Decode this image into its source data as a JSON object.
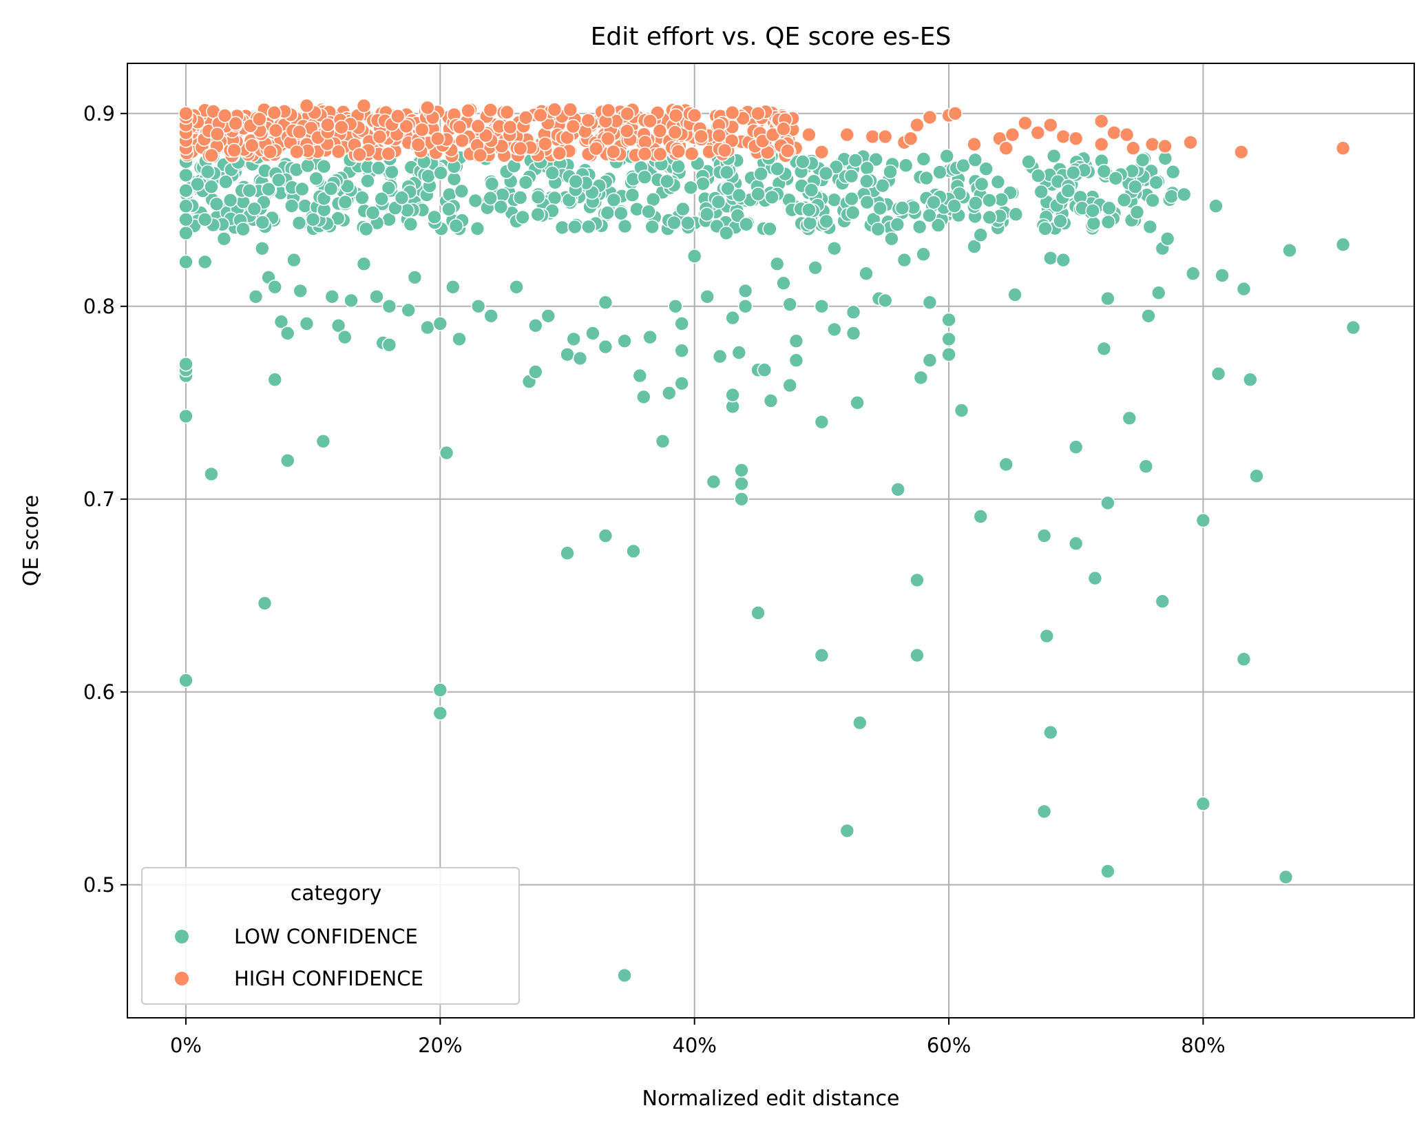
{
  "chart_data": {
    "type": "scatter",
    "title": "Edit effort vs. QE score es-ES",
    "xlabel": "Normalized edit distance",
    "ylabel": "QE score",
    "xlim": [
      -0.046,
      0.966
    ],
    "ylim": [
      0.431,
      0.926
    ],
    "x_ticks": [
      0,
      0.2,
      0.4,
      0.6,
      0.8
    ],
    "x_tick_labels": [
      "0%",
      "20%",
      "40%",
      "60%",
      "80%"
    ],
    "y_ticks": [
      0.5,
      0.6,
      0.7,
      0.8,
      0.9
    ],
    "y_tick_labels": [
      "0.5",
      "0.6",
      "0.7",
      "0.8",
      "0.9"
    ],
    "grid": true,
    "legend": {
      "title": "category",
      "position": "lower-left"
    },
    "colors": {
      "low": "#66c2a5",
      "high": "#fc8d62"
    },
    "series": [
      {
        "name": "LOW CONFIDENCE",
        "color": "#66c2a5",
        "points": [
          [
            0.0,
            0.606
          ],
          [
            0.0,
            0.743
          ],
          [
            0.0,
            0.764
          ],
          [
            0.0,
            0.767
          ],
          [
            0.0,
            0.77
          ],
          [
            0.0,
            0.823
          ],
          [
            0.0,
            0.838
          ],
          [
            0.0,
            0.845
          ],
          [
            0.0,
            0.852
          ],
          [
            0.0,
            0.86
          ],
          [
            0.0,
            0.868
          ],
          [
            0.0,
            0.875
          ],
          [
            0.015,
            0.823
          ],
          [
            0.015,
            0.845
          ],
          [
            0.02,
            0.713
          ],
          [
            0.02,
            0.862
          ],
          [
            0.03,
            0.835
          ],
          [
            0.035,
            0.855
          ],
          [
            0.045,
            0.84
          ],
          [
            0.05,
            0.86
          ],
          [
            0.055,
            0.805
          ],
          [
            0.06,
            0.83
          ],
          [
            0.062,
            0.646
          ],
          [
            0.065,
            0.815
          ],
          [
            0.07,
            0.762
          ],
          [
            0.07,
            0.81
          ],
          [
            0.075,
            0.792
          ],
          [
            0.08,
            0.72
          ],
          [
            0.08,
            0.786
          ],
          [
            0.085,
            0.824
          ],
          [
            0.09,
            0.808
          ],
          [
            0.095,
            0.791
          ],
          [
            0.1,
            0.845
          ],
          [
            0.108,
            0.73
          ],
          [
            0.115,
            0.805
          ],
          [
            0.12,
            0.79
          ],
          [
            0.125,
            0.784
          ],
          [
            0.13,
            0.803
          ],
          [
            0.14,
            0.822
          ],
          [
            0.15,
            0.805
          ],
          [
            0.155,
            0.781
          ],
          [
            0.16,
            0.78
          ],
          [
            0.16,
            0.8
          ],
          [
            0.175,
            0.798
          ],
          [
            0.18,
            0.815
          ],
          [
            0.19,
            0.789
          ],
          [
            0.2,
            0.601
          ],
          [
            0.2,
            0.589
          ],
          [
            0.2,
            0.791
          ],
          [
            0.205,
            0.724
          ],
          [
            0.21,
            0.81
          ],
          [
            0.215,
            0.783
          ],
          [
            0.23,
            0.8
          ],
          [
            0.24,
            0.795
          ],
          [
            0.26,
            0.81
          ],
          [
            0.27,
            0.761
          ],
          [
            0.275,
            0.766
          ],
          [
            0.275,
            0.79
          ],
          [
            0.285,
            0.795
          ],
          [
            0.3,
            0.672
          ],
          [
            0.3,
            0.775
          ],
          [
            0.305,
            0.783
          ],
          [
            0.31,
            0.773
          ],
          [
            0.32,
            0.786
          ],
          [
            0.33,
            0.681
          ],
          [
            0.33,
            0.779
          ],
          [
            0.33,
            0.802
          ],
          [
            0.345,
            0.453
          ],
          [
            0.345,
            0.782
          ],
          [
            0.352,
            0.673
          ],
          [
            0.357,
            0.764
          ],
          [
            0.36,
            0.753
          ],
          [
            0.365,
            0.784
          ],
          [
            0.375,
            0.73
          ],
          [
            0.38,
            0.755
          ],
          [
            0.385,
            0.8
          ],
          [
            0.39,
            0.76
          ],
          [
            0.39,
            0.777
          ],
          [
            0.39,
            0.791
          ],
          [
            0.4,
            0.826
          ],
          [
            0.41,
            0.805
          ],
          [
            0.415,
            0.709
          ],
          [
            0.42,
            0.774
          ],
          [
            0.425,
            0.838
          ],
          [
            0.43,
            0.748
          ],
          [
            0.43,
            0.754
          ],
          [
            0.43,
            0.794
          ],
          [
            0.435,
            0.776
          ],
          [
            0.437,
            0.7
          ],
          [
            0.437,
            0.708
          ],
          [
            0.437,
            0.715
          ],
          [
            0.44,
            0.8
          ],
          [
            0.44,
            0.808
          ],
          [
            0.45,
            0.767
          ],
          [
            0.45,
            0.641
          ],
          [
            0.455,
            0.767
          ],
          [
            0.46,
            0.751
          ],
          [
            0.465,
            0.822
          ],
          [
            0.47,
            0.812
          ],
          [
            0.475,
            0.759
          ],
          [
            0.475,
            0.801
          ],
          [
            0.48,
            0.772
          ],
          [
            0.48,
            0.782
          ],
          [
            0.49,
            0.85
          ],
          [
            0.495,
            0.82
          ],
          [
            0.5,
            0.619
          ],
          [
            0.5,
            0.74
          ],
          [
            0.5,
            0.8
          ],
          [
            0.51,
            0.788
          ],
          [
            0.51,
            0.83
          ],
          [
            0.52,
            0.528
          ],
          [
            0.525,
            0.786
          ],
          [
            0.525,
            0.797
          ],
          [
            0.528,
            0.75
          ],
          [
            0.53,
            0.584
          ],
          [
            0.535,
            0.817
          ],
          [
            0.545,
            0.804
          ],
          [
            0.55,
            0.803
          ],
          [
            0.555,
            0.835
          ],
          [
            0.56,
            0.705
          ],
          [
            0.565,
            0.824
          ],
          [
            0.575,
            0.619
          ],
          [
            0.575,
            0.658
          ],
          [
            0.578,
            0.763
          ],
          [
            0.58,
            0.827
          ],
          [
            0.585,
            0.772
          ],
          [
            0.585,
            0.802
          ],
          [
            0.6,
            0.775
          ],
          [
            0.6,
            0.783
          ],
          [
            0.6,
            0.793
          ],
          [
            0.61,
            0.746
          ],
          [
            0.62,
            0.831
          ],
          [
            0.625,
            0.691
          ],
          [
            0.625,
            0.837
          ],
          [
            0.645,
            0.718
          ],
          [
            0.652,
            0.806
          ],
          [
            0.675,
            0.538
          ],
          [
            0.675,
            0.681
          ],
          [
            0.677,
            0.629
          ],
          [
            0.68,
            0.579
          ],
          [
            0.68,
            0.825
          ],
          [
            0.69,
            0.824
          ],
          [
            0.7,
            0.677
          ],
          [
            0.7,
            0.727
          ],
          [
            0.715,
            0.659
          ],
          [
            0.722,
            0.778
          ],
          [
            0.725,
            0.507
          ],
          [
            0.725,
            0.698
          ],
          [
            0.725,
            0.804
          ],
          [
            0.742,
            0.742
          ],
          [
            0.755,
            0.717
          ],
          [
            0.757,
            0.795
          ],
          [
            0.765,
            0.807
          ],
          [
            0.768,
            0.647
          ],
          [
            0.768,
            0.83
          ],
          [
            0.772,
            0.835
          ],
          [
            0.775,
            0.857
          ],
          [
            0.785,
            0.858
          ],
          [
            0.792,
            0.817
          ],
          [
            0.8,
            0.542
          ],
          [
            0.8,
            0.689
          ],
          [
            0.81,
            0.852
          ],
          [
            0.812,
            0.765
          ],
          [
            0.815,
            0.816
          ],
          [
            0.832,
            0.617
          ],
          [
            0.832,
            0.809
          ],
          [
            0.837,
            0.762
          ],
          [
            0.842,
            0.712
          ],
          [
            0.865,
            0.504
          ],
          [
            0.868,
            0.829
          ],
          [
            0.91,
            0.832
          ],
          [
            0.918,
            0.789
          ]
        ],
        "band": {
          "x_range": [
            0.0,
            0.78
          ],
          "y_range": [
            0.84,
            0.878
          ],
          "count": 620
        }
      },
      {
        "name": "HIGH CONFIDENCE",
        "color": "#fc8d62",
        "points": [
          [
            0.0,
            0.882
          ],
          [
            0.0,
            0.886
          ],
          [
            0.0,
            0.89
          ],
          [
            0.0,
            0.894
          ],
          [
            0.0,
            0.898
          ],
          [
            0.0,
            0.9
          ],
          [
            0.095,
            0.904
          ],
          [
            0.14,
            0.904
          ],
          [
            0.19,
            0.903
          ],
          [
            0.29,
            0.902
          ],
          [
            0.4,
            0.899
          ],
          [
            0.45,
            0.9
          ],
          [
            0.47,
            0.892
          ],
          [
            0.49,
            0.889
          ],
          [
            0.5,
            0.88
          ],
          [
            0.52,
            0.889
          ],
          [
            0.54,
            0.888
          ],
          [
            0.55,
            0.888
          ],
          [
            0.565,
            0.885
          ],
          [
            0.57,
            0.887
          ],
          [
            0.575,
            0.894
          ],
          [
            0.585,
            0.898
          ],
          [
            0.6,
            0.899
          ],
          [
            0.605,
            0.9
          ],
          [
            0.62,
            0.884
          ],
          [
            0.64,
            0.887
          ],
          [
            0.645,
            0.882
          ],
          [
            0.65,
            0.889
          ],
          [
            0.66,
            0.895
          ],
          [
            0.67,
            0.89
          ],
          [
            0.68,
            0.894
          ],
          [
            0.69,
            0.888
          ],
          [
            0.7,
            0.887
          ],
          [
            0.72,
            0.896
          ],
          [
            0.72,
            0.884
          ],
          [
            0.73,
            0.89
          ],
          [
            0.74,
            0.889
          ],
          [
            0.745,
            0.882
          ],
          [
            0.76,
            0.884
          ],
          [
            0.77,
            0.883
          ],
          [
            0.79,
            0.885
          ],
          [
            0.83,
            0.88
          ],
          [
            0.91,
            0.882
          ]
        ],
        "band": {
          "x_range": [
            0.0,
            0.48
          ],
          "y_range": [
            0.878,
            0.902
          ],
          "count": 520
        }
      }
    ]
  }
}
